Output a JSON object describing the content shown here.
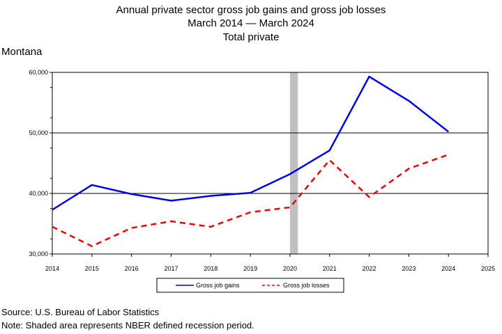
{
  "chart_data": {
    "type": "line",
    "title_lines": [
      "Annual private sector gross job gains and gross job losses",
      "March 2014 — March 2024",
      "Total private"
    ],
    "state_label": "Montana",
    "x": [
      2014,
      2015,
      2016,
      2017,
      2018,
      2019,
      2020,
      2021,
      2022,
      2023,
      2024
    ],
    "x_ticks": [
      "2014",
      "2015",
      "2016",
      "2017",
      "2018",
      "2019",
      "2020",
      "2021",
      "2022",
      "2023",
      "2024",
      "2025"
    ],
    "xlim": [
      2014,
      2025
    ],
    "ylim": [
      30000,
      60000
    ],
    "y_ticks": [
      30000,
      40000,
      50000,
      60000
    ],
    "y_tick_labels": [
      "30,000",
      "40,000",
      "50,000",
      "60,000"
    ],
    "grid": "horizontal at 40,000 and 50,000",
    "recession_shading": {
      "from": 2020,
      "to": 2020.2,
      "color": "#c0c0c0"
    },
    "series": [
      {
        "name": "Gross job gains",
        "color": "#0000ee",
        "style": "solid",
        "values": [
          37300,
          41400,
          39900,
          38800,
          39600,
          40100,
          43200,
          47100,
          59300,
          55300,
          50200
        ]
      },
      {
        "name": "Gross job losses",
        "color": "#ee0000",
        "style": "dashed",
        "values": [
          34500,
          31300,
          34300,
          35400,
          34500,
          36900,
          37700,
          45500,
          39400,
          44100,
          46400
        ]
      }
    ],
    "legend_position": "bottom"
  },
  "footer": {
    "source": "Source: U.S. Bureau of Labor Statistics",
    "note": "Note: Shaded area represents NBER defined recession period."
  }
}
